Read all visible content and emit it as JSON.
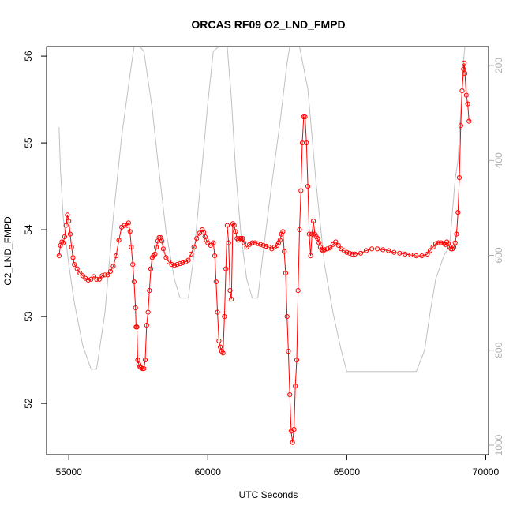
{
  "chart_data": {
    "type": "line",
    "title": "ORCAS RF09 O2_LND_FMPD",
    "xlabel": "UTC Seconds",
    "ylabel": "O2_LND_FMPD",
    "xlim": [
      54200,
      70100
    ],
    "ylim": [
      51.41,
      56.11
    ],
    "y2lim": [
      1020,
      160
    ],
    "x_ticks": [
      55000,
      60000,
      65000,
      70000
    ],
    "y_ticks": [
      52,
      53,
      54,
      55,
      56
    ],
    "y2_ticks": [
      200,
      400,
      600,
      800,
      1000
    ],
    "grid": false,
    "colors": {
      "primary": "#ff0000",
      "secondary": "#c0c0c0"
    },
    "series": [
      {
        "axis": "left",
        "style": "points+line",
        "color": "#ff0000",
        "points": [
          [
            54650,
            53.7
          ],
          [
            54700,
            53.82
          ],
          [
            54750,
            53.86
          ],
          [
            54800,
            53.85
          ],
          [
            54850,
            53.92
          ],
          [
            54900,
            54.05
          ],
          [
            54950,
            54.17
          ],
          [
            55000,
            54.1
          ],
          [
            55050,
            53.95
          ],
          [
            55100,
            53.8
          ],
          [
            55150,
            53.68
          ],
          [
            55200,
            53.6
          ],
          [
            55300,
            53.55
          ],
          [
            55400,
            53.5
          ],
          [
            55500,
            53.47
          ],
          [
            55600,
            53.44
          ],
          [
            55700,
            53.42
          ],
          [
            55800,
            53.43
          ],
          [
            55900,
            53.46
          ],
          [
            56000,
            53.43
          ],
          [
            56100,
            53.43
          ],
          [
            56200,
            53.47
          ],
          [
            56300,
            53.48
          ],
          [
            56400,
            53.48
          ],
          [
            56500,
            53.52
          ],
          [
            56600,
            53.58
          ],
          [
            56700,
            53.7
          ],
          [
            56800,
            53.88
          ],
          [
            56900,
            54.03
          ],
          [
            57000,
            54.05
          ],
          [
            57100,
            54.05
          ],
          [
            57150,
            54.08
          ],
          [
            57200,
            53.98
          ],
          [
            57250,
            53.8
          ],
          [
            57300,
            53.6
          ],
          [
            57350,
            53.4
          ],
          [
            57400,
            53.1
          ],
          [
            57420,
            52.88
          ],
          [
            57450,
            52.88
          ],
          [
            57480,
            52.5
          ],
          [
            57520,
            52.45
          ],
          [
            57560,
            52.42
          ],
          [
            57600,
            52.41
          ],
          [
            57650,
            52.4
          ],
          [
            57700,
            52.4
          ],
          [
            57750,
            52.5
          ],
          [
            57800,
            52.9
          ],
          [
            57850,
            53.05
          ],
          [
            57900,
            53.3
          ],
          [
            57950,
            53.55
          ],
          [
            58000,
            53.68
          ],
          [
            58050,
            53.7
          ],
          [
            58100,
            53.72
          ],
          [
            58150,
            53.8
          ],
          [
            58200,
            53.87
          ],
          [
            58250,
            53.91
          ],
          [
            58300,
            53.91
          ],
          [
            58350,
            53.87
          ],
          [
            58400,
            53.78
          ],
          [
            58500,
            53.68
          ],
          [
            58600,
            53.63
          ],
          [
            58700,
            53.6
          ],
          [
            58800,
            53.59
          ],
          [
            58900,
            53.6
          ],
          [
            59000,
            53.61
          ],
          [
            59100,
            53.62
          ],
          [
            59200,
            53.63
          ],
          [
            59300,
            53.65
          ],
          [
            59400,
            53.72
          ],
          [
            59500,
            53.8
          ],
          [
            59600,
            53.9
          ],
          [
            59700,
            53.96
          ],
          [
            59800,
            54.0
          ],
          [
            59850,
            53.97
          ],
          [
            59900,
            53.92
          ],
          [
            59950,
            53.88
          ],
          [
            60000,
            53.85
          ],
          [
            60100,
            53.82
          ],
          [
            60200,
            53.85
          ],
          [
            60250,
            53.7
          ],
          [
            60300,
            53.4
          ],
          [
            60350,
            53.05
          ],
          [
            60400,
            52.72
          ],
          [
            60450,
            52.65
          ],
          [
            60500,
            52.6
          ],
          [
            60550,
            52.58
          ],
          [
            60600,
            53.0
          ],
          [
            60650,
            53.55
          ],
          [
            60700,
            54.05
          ],
          [
            60750,
            53.85
          ],
          [
            60800,
            53.3
          ],
          [
            60850,
            53.2
          ],
          [
            60900,
            54.07
          ],
          [
            60950,
            54.05
          ],
          [
            61000,
            53.98
          ],
          [
            61050,
            53.9
          ],
          [
            61100,
            53.88
          ],
          [
            61150,
            53.9
          ],
          [
            61200,
            53.9
          ],
          [
            61250,
            53.9
          ],
          [
            61300,
            53.85
          ],
          [
            61400,
            53.8
          ],
          [
            61500,
            53.83
          ],
          [
            61600,
            53.85
          ],
          [
            61700,
            53.85
          ],
          [
            61800,
            53.84
          ],
          [
            61900,
            53.83
          ],
          [
            62000,
            53.82
          ],
          [
            62100,
            53.81
          ],
          [
            62200,
            53.8
          ],
          [
            62300,
            53.78
          ],
          [
            62400,
            53.8
          ],
          [
            62500,
            53.82
          ],
          [
            62550,
            53.85
          ],
          [
            62600,
            53.88
          ],
          [
            62650,
            53.95
          ],
          [
            62700,
            53.98
          ],
          [
            62750,
            53.75
          ],
          [
            62800,
            53.5
          ],
          [
            62850,
            53.0
          ],
          [
            62900,
            52.6
          ],
          [
            62950,
            52.1
          ],
          [
            63000,
            51.68
          ],
          [
            63050,
            51.55
          ],
          [
            63100,
            51.7
          ],
          [
            63150,
            52.2
          ],
          [
            63200,
            52.5
          ],
          [
            63250,
            53.3
          ],
          [
            63300,
            54.0
          ],
          [
            63350,
            54.45
          ],
          [
            63400,
            55.0
          ],
          [
            63450,
            55.3
          ],
          [
            63500,
            55.3
          ],
          [
            63550,
            55.0
          ],
          [
            63600,
            54.5
          ],
          [
            63650,
            53.95
          ],
          [
            63700,
            53.7
          ],
          [
            63750,
            53.95
          ],
          [
            63800,
            54.1
          ],
          [
            63850,
            53.95
          ],
          [
            63900,
            53.92
          ],
          [
            63950,
            53.9
          ],
          [
            64000,
            53.85
          ],
          [
            64050,
            53.8
          ],
          [
            64100,
            53.77
          ],
          [
            64150,
            53.76
          ],
          [
            64200,
            53.77
          ],
          [
            64300,
            53.78
          ],
          [
            64400,
            53.79
          ],
          [
            64500,
            53.83
          ],
          [
            64600,
            53.86
          ],
          [
            64700,
            53.82
          ],
          [
            64800,
            53.78
          ],
          [
            64900,
            53.76
          ],
          [
            65000,
            53.74
          ],
          [
            65100,
            53.73
          ],
          [
            65200,
            53.72
          ],
          [
            65300,
            53.72
          ],
          [
            65500,
            53.73
          ],
          [
            65700,
            53.76
          ],
          [
            65900,
            53.78
          ],
          [
            66100,
            53.78
          ],
          [
            66300,
            53.77
          ],
          [
            66500,
            53.76
          ],
          [
            66700,
            53.74
          ],
          [
            66900,
            53.73
          ],
          [
            67100,
            53.72
          ],
          [
            67300,
            53.71
          ],
          [
            67500,
            53.7
          ],
          [
            67700,
            53.7
          ],
          [
            67900,
            53.72
          ],
          [
            68000,
            53.76
          ],
          [
            68100,
            53.8
          ],
          [
            68200,
            53.84
          ],
          [
            68300,
            53.85
          ],
          [
            68400,
            53.85
          ],
          [
            68500,
            53.84
          ],
          [
            68550,
            53.83
          ],
          [
            68600,
            53.86
          ],
          [
            68650,
            53.84
          ],
          [
            68700,
            53.8
          ],
          [
            68750,
            53.78
          ],
          [
            68800,
            53.78
          ],
          [
            68850,
            53.8
          ],
          [
            68900,
            53.85
          ],
          [
            68950,
            53.95
          ],
          [
            69000,
            54.2
          ],
          [
            69050,
            54.6
          ],
          [
            69100,
            55.2
          ],
          [
            69150,
            55.6
          ],
          [
            69200,
            55.85
          ],
          [
            69220,
            55.92
          ],
          [
            69250,
            55.8
          ],
          [
            69300,
            55.55
          ],
          [
            69350,
            55.45
          ],
          [
            69400,
            55.25
          ]
        ]
      },
      {
        "axis": "right",
        "style": "line",
        "color": "#c0c0c0",
        "points": [
          [
            54650,
            330
          ],
          [
            54700,
            420
          ],
          [
            54800,
            520
          ],
          [
            55000,
            620
          ],
          [
            55200,
            700
          ],
          [
            55500,
            790
          ],
          [
            55800,
            840
          ],
          [
            56000,
            840
          ],
          [
            56300,
            720
          ],
          [
            56600,
            520
          ],
          [
            56900,
            350
          ],
          [
            57200,
            220
          ],
          [
            57350,
            160
          ],
          [
            57550,
            160
          ],
          [
            57700,
            170
          ],
          [
            58000,
            290
          ],
          [
            58200,
            400
          ],
          [
            58500,
            550
          ],
          [
            58800,
            650
          ],
          [
            59000,
            690
          ],
          [
            59300,
            690
          ],
          [
            59500,
            600
          ],
          [
            59800,
            410
          ],
          [
            60000,
            280
          ],
          [
            60200,
            170
          ],
          [
            60400,
            160
          ],
          [
            60700,
            160
          ],
          [
            60850,
            270
          ],
          [
            61000,
            420
          ],
          [
            61200,
            560
          ],
          [
            61400,
            650
          ],
          [
            61600,
            690
          ],
          [
            61800,
            690
          ],
          [
            62000,
            590
          ],
          [
            62300,
            450
          ],
          [
            62600,
            320
          ],
          [
            62850,
            195
          ],
          [
            62950,
            160
          ],
          [
            63300,
            160
          ],
          [
            63600,
            250
          ],
          [
            63900,
            450
          ],
          [
            64200,
            620
          ],
          [
            64500,
            720
          ],
          [
            64800,
            800
          ],
          [
            65000,
            845
          ],
          [
            66000,
            845
          ],
          [
            67000,
            845
          ],
          [
            67500,
            845
          ],
          [
            67800,
            800
          ],
          [
            68000,
            720
          ],
          [
            68200,
            650
          ],
          [
            68500,
            600
          ],
          [
            68700,
            580
          ],
          [
            68900,
            440
          ],
          [
            69000,
            400
          ],
          [
            69200,
            190
          ],
          [
            69250,
            160
          ]
        ]
      }
    ]
  }
}
